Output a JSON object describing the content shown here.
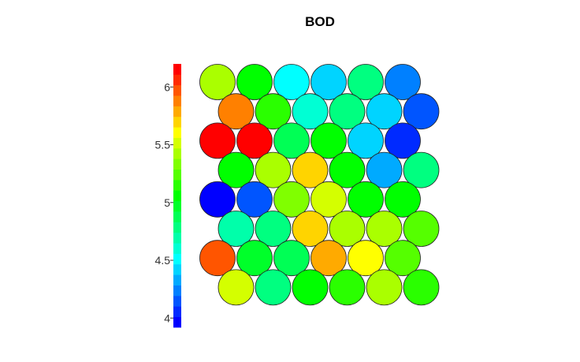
{
  "chart_data": {
    "type": "heatmap",
    "subtype": "som-hexagonal-property-map",
    "title": "BOD",
    "grid": {
      "rows": 8,
      "cols": 6,
      "topology": "hexagonal"
    },
    "colorbar": {
      "min": 3.92,
      "max": 6.2,
      "ticks": [
        {
          "value": 4,
          "label": "4"
        },
        {
          "value": 4.5,
          "label": "4.5"
        },
        {
          "value": 5,
          "label": "5"
        },
        {
          "value": 5.5,
          "label": "5.5"
        },
        {
          "value": 6,
          "label": "6"
        }
      ],
      "palette": [
        "#0000ff",
        "#002aff",
        "#0055ff",
        "#0080ff",
        "#00aaff",
        "#00d4ff",
        "#00ffff",
        "#00ffd4",
        "#00ffaa",
        "#00ff80",
        "#00ff55",
        "#00ff2a",
        "#00ff00",
        "#2aff00",
        "#55ff00",
        "#80ff00",
        "#aaff00",
        "#d4ff00",
        "#ffff00",
        "#ffd400",
        "#ffaa00",
        "#ff8000",
        "#ff5500",
        "#ff2a00",
        "#ff0000"
      ]
    },
    "values": [
      [
        5.45,
        5.02,
        4.53,
        4.46,
        4.79,
        4.27
      ],
      [
        5.84,
        5.13,
        4.6,
        4.8,
        4.44,
        4.12
      ],
      [
        6.15,
        6.2,
        4.86,
        5.05,
        4.45,
        4.1
      ],
      [
        5.03,
        5.42,
        5.71,
        5.04,
        4.33,
        4.78
      ],
      [
        3.95,
        4.14,
        5.35,
        5.56,
        5.03,
        5.02
      ],
      [
        4.7,
        4.75,
        5.73,
        5.46,
        5.42,
        5.28
      ],
      [
        6.0,
        4.98,
        4.85,
        5.8,
        5.61,
        5.25
      ],
      [
        5.56,
        4.82,
        5.05,
        5.17,
        5.4,
        5.11
      ]
    ]
  }
}
